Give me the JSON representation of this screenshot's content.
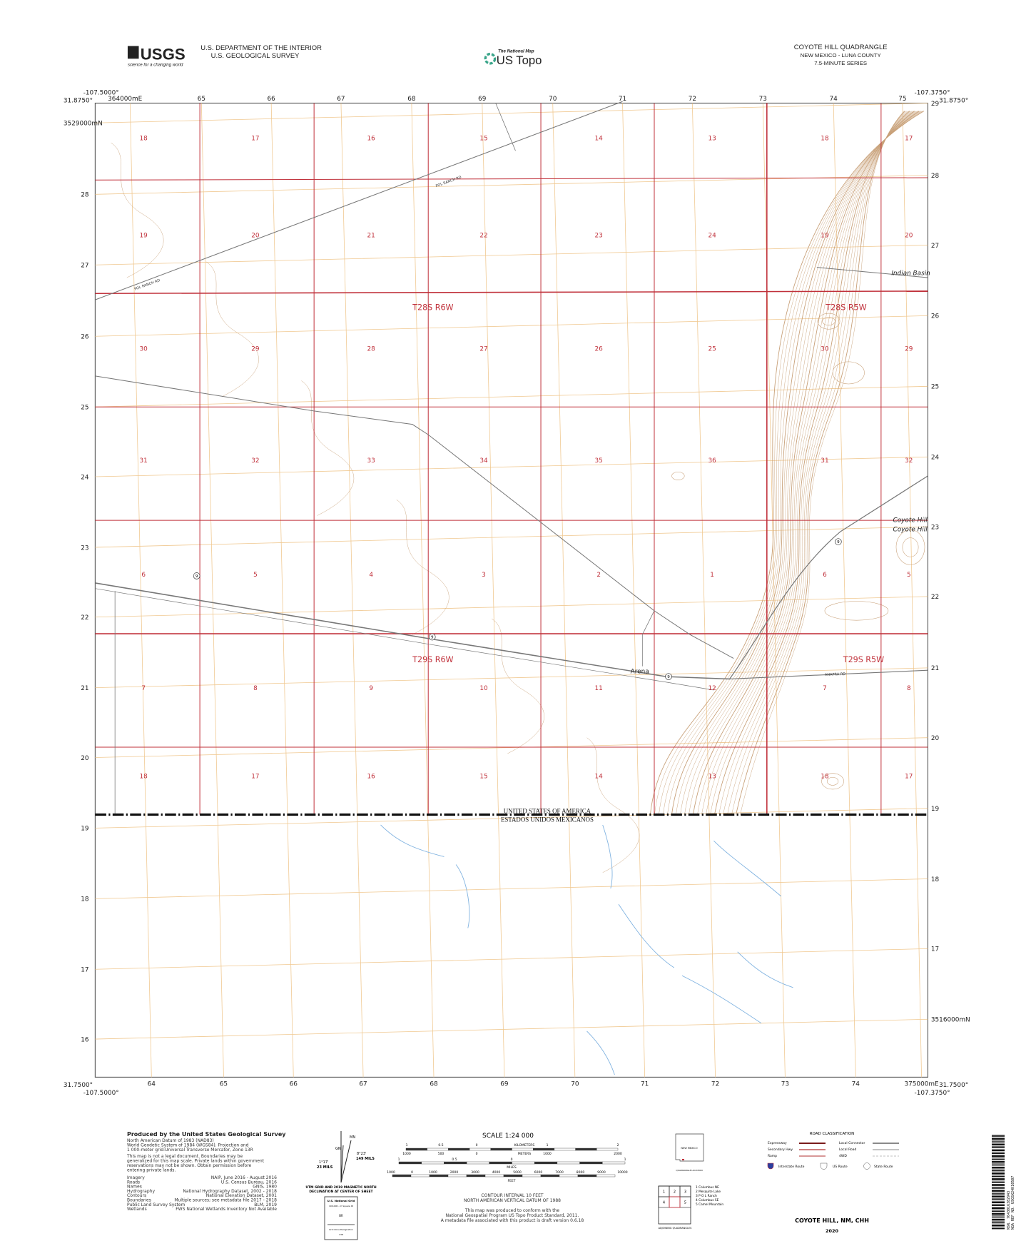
{
  "header": {
    "usgs_logo": "USGS",
    "usgs_tagline": "science for a changing world",
    "department": "U.S. DEPARTMENT OF THE INTERIOR",
    "survey": "U.S. GEOLOGICAL SURVEY",
    "national_map": "The National Map",
    "us_topo": "US Topo",
    "quad_title": "COYOTE HILL QUADRANGLE",
    "state_county": "NEW MEXICO - LUNA COUNTY",
    "series": "7.5-MINUTE SERIES"
  },
  "corners": {
    "nw_lon": "-107.5000°",
    "nw_lat": "31.8750°",
    "ne_lon": "-107.3750°",
    "ne_lat": "31.8750°",
    "sw_lon": "-107.5000°",
    "sw_lat": "31.7500°",
    "se_lon": "-107.3750°",
    "se_lat": "31.7500°"
  },
  "grid": {
    "top_eastings": [
      "364000mE",
      "65",
      "66",
      "67",
      "68",
      "69",
      "70",
      "71",
      "72",
      "73",
      "74",
      "75"
    ],
    "bottom_eastings": [
      "64",
      "65",
      "66",
      "67",
      "68",
      "69",
      "70",
      "71",
      "72",
      "73",
      "74",
      "375000mE"
    ],
    "left_northings": [
      "3529000mN",
      "28",
      "27",
      "26",
      "25",
      "24",
      "23",
      "22",
      "21",
      "20",
      "19",
      "18",
      "17",
      "16"
    ],
    "right_northings": [
      "29",
      "28",
      "27",
      "26",
      "25",
      "24",
      "23",
      "22",
      "21",
      "20",
      "19",
      "18",
      "17",
      "3516000mN"
    ]
  },
  "sections": [
    [
      "18",
      "17",
      "16",
      "15",
      "14",
      "13",
      "18",
      "17"
    ],
    [
      "19",
      "20",
      "21",
      "22",
      "23",
      "24",
      "19",
      "20"
    ],
    [
      "30",
      "29",
      "28",
      "27",
      "26",
      "25",
      "30",
      "29"
    ],
    [
      "31",
      "32",
      "33",
      "34",
      "35",
      "36",
      "31",
      "32"
    ],
    [
      "6",
      "5",
      "4",
      "3",
      "2",
      "1",
      "6",
      "5"
    ],
    [
      "7",
      "8",
      "9",
      "10",
      "11",
      "12",
      "7",
      "8"
    ],
    [
      "18",
      "17",
      "16",
      "15",
      "14",
      "13",
      "18",
      "17"
    ]
  ],
  "townships": [
    "T28S R6W",
    "T28S R5W",
    "T29S R6W",
    "T29S R5W"
  ],
  "places": {
    "indian_basin": "Indian Basin",
    "coyote_hill_1": "Coyote Hill",
    "coyote_hill_2": "Coyote Hill",
    "arena": "Arena"
  },
  "roads": {
    "pol_ranch_1": "POL RANCH RD",
    "pol_ranch_2": "POL RANCH RD",
    "anapra": "ANAPRA RD",
    "route_9": "9"
  },
  "border": {
    "usa": "UNITED STATES OF AMERICA",
    "mexico": "ESTADOS UNIDOS MEXICANOS"
  },
  "footer": {
    "produced_by": "Produced by the United States Geological Survey",
    "datum_lines": [
      "North American Datum of 1983 (NAD83)",
      "World Geodetic System of 1984 (WGS84). Projection and",
      "1 000-meter grid:Universal Transverse Mercator, Zone 13R"
    ],
    "disclaimer_lines": [
      "This map is not a legal document. Boundaries may be",
      "generalized for this map scale. Private lands within government",
      "reservations may not be shown. Obtain permission before",
      "entering private lands."
    ],
    "sources": [
      {
        "label": "Imagery",
        "value": "NAIP, June 2016 - August 2016"
      },
      {
        "label": "Roads",
        "value": "U.S. Census Bureau, 2016"
      },
      {
        "label": "Names",
        "value": "GNIS, 1980"
      },
      {
        "label": "Hydrography",
        "value": "National Hydrography Dataset, 2002 - 2018"
      },
      {
        "label": "Contours",
        "value": "National Elevation Dataset, 2001"
      },
      {
        "label": "Boundaries",
        "value": "Multiple sources; see metadata file 2017 - 2018"
      },
      {
        "label": "Public Land Survey System",
        "value": "BLM, 2019"
      },
      {
        "label": "Wetlands",
        "value": "FWS National Wetlands Inventory Not Available"
      }
    ],
    "declination": {
      "mn": "MN",
      "gn": "GN",
      "grid_angle": "1°17'",
      "grid_mils": "23 MILS",
      "mag_angle": "8°23'",
      "mag_mils": "149 MILS",
      "caption_1": "UTM GRID AND 2019 MAGNETIC NORTH",
      "caption_2": "DECLINATION AT CENTER OF SHEET"
    },
    "national_grid": {
      "title": "U.S. National Grid",
      "square_id_label": "100,000 - m Square ID",
      "square_id": "BR",
      "zone_label": "Grid Zone Designation",
      "zone": "13R"
    },
    "scale": {
      "title": "SCALE 1:24 000",
      "km_labels": [
        "1",
        "0.5",
        "0",
        "KILOMETERS",
        "1",
        "2"
      ],
      "m_labels": [
        "1000",
        "500",
        "0",
        "METERS",
        "1000",
        "2000"
      ],
      "mi_labels": [
        "1",
        "0.5",
        "0",
        "1"
      ],
      "mi_unit": "MILES",
      "ft_labels": [
        "1000",
        "0",
        "1000",
        "2000",
        "3000",
        "4000",
        "5000",
        "6000",
        "7000",
        "8000",
        "9000",
        "10000"
      ],
      "ft_unit": "FEET"
    },
    "contour_interval": "CONTOUR INTERVAL 10 FEET",
    "vertical_datum": "NORTH AMERICAN VERTICAL DATUM OF 1988",
    "conform_lines": [
      "This map was produced to conform with the",
      "National Geospatial Program US Topo Product Standard, 2011.",
      "A metadata file associated with this product is draft version 0.6.18"
    ],
    "quad_location_state": "NEW MEXICO",
    "quad_location_caption": "QUADRANGLE LOCATION",
    "adjoining_cells": [
      "1",
      "2",
      "3",
      "4",
      "5"
    ],
    "adjoining_names": [
      "1 Columbus NE",
      "2 Mesquite Lake",
      "3 P O L Ranch",
      "4 Columbus SE",
      "5 Camel Mountain"
    ],
    "adjoining_caption": "ADJOINING QUADRANGLES",
    "road_class_title": "ROAD CLASSIFICATION",
    "road_classes": [
      "Expressway",
      "Secondary Hwy",
      "Ramp",
      "Local Connector",
      "Local Road",
      "4WD"
    ],
    "route_types": [
      "Interstate Route",
      "US Route",
      "State Route"
    ],
    "sheet_name": "COYOTE HILL,  NM, CHH",
    "year": "2020",
    "barcode_text_1": "NSN. 7643016382943",
    "barcode_text_2": "NGA REF NO. USGSX24K10507"
  },
  "colors": {
    "section_line": "#c0303a",
    "utm_grid": "#f0c890",
    "contour": "#c8a078",
    "road": "#777777",
    "water": "#7fb2e0",
    "border": "#111111"
  }
}
